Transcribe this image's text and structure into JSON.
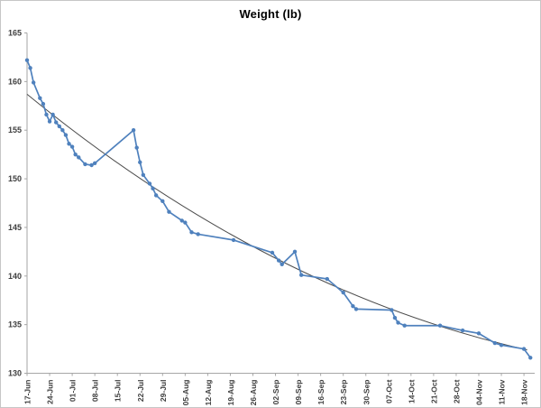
{
  "chart_data": {
    "type": "line",
    "title": "Weight (lb)",
    "ylabel": "",
    "xlabel": "",
    "ylim": [
      130,
      165
    ],
    "ytick_step": 5,
    "ytick_labels": [
      "165",
      "160",
      "155",
      "150",
      "145",
      "140",
      "135",
      "130"
    ],
    "x_tick_labels": [
      "17-Jun",
      "24-Jun",
      "01-Jul",
      "08-Jul",
      "15-Jul",
      "22-Jul",
      "29-Jul",
      "05-Aug",
      "12-Aug",
      "19-Aug",
      "26-Aug",
      "02-Sep",
      "09-Sep",
      "16-Sep",
      "23-Sep",
      "30-Sep",
      "07-Oct",
      "14-Oct",
      "21-Oct",
      "28-Oct",
      "04-Nov",
      "11-Nov",
      "18-Nov"
    ],
    "grid": false,
    "legend": "none",
    "colors": {
      "series": "#4F81BD",
      "trendline": "#4d4d4d",
      "axis": "#A6A6A6",
      "tick_label": "#3F3F3F",
      "title": "#000000"
    },
    "series": [
      {
        "marker": "circle",
        "points": [
          {
            "day": 0,
            "date": "17-Jun",
            "value": 162.2
          },
          {
            "day": 1,
            "date": "18-Jun",
            "value": 161.4
          },
          {
            "day": 2,
            "date": "19-Jun",
            "value": 159.9
          },
          {
            "day": 4,
            "date": "21-Jun",
            "value": 158.3
          },
          {
            "day": 5,
            "date": "22-Jun",
            "value": 157.7
          },
          {
            "day": 6,
            "date": "23-Jun",
            "value": 156.6
          },
          {
            "day": 7,
            "date": "24-Jun",
            "value": 155.9
          },
          {
            "day": 8,
            "date": "25-Jun",
            "value": 156.6
          },
          {
            "day": 9,
            "date": "26-Jun",
            "value": 155.8
          },
          {
            "day": 10,
            "date": "27-Jun",
            "value": 155.4
          },
          {
            "day": 11,
            "date": "28-Jun",
            "value": 155.0
          },
          {
            "day": 12,
            "date": "29-Jun",
            "value": 154.5
          },
          {
            "day": 13,
            "date": "30-Jun",
            "value": 153.6
          },
          {
            "day": 14,
            "date": "01-Jul",
            "value": 153.3
          },
          {
            "day": 15,
            "date": "02-Jul",
            "value": 152.5
          },
          {
            "day": 16,
            "date": "03-Jul",
            "value": 152.2
          },
          {
            "day": 18,
            "date": "05-Jul",
            "value": 151.5
          },
          {
            "day": 20,
            "date": "07-Jul",
            "value": 151.4
          },
          {
            "day": 21,
            "date": "08-Jul",
            "value": 151.6
          },
          {
            "day": 33,
            "date": "20-Jul",
            "value": 155.0
          },
          {
            "day": 34,
            "date": "21-Jul",
            "value": 153.2
          },
          {
            "day": 35,
            "date": "22-Jul",
            "value": 151.7
          },
          {
            "day": 36,
            "date": "23-Jul",
            "value": 150.4
          },
          {
            "day": 38,
            "date": "25-Jul",
            "value": 149.5
          },
          {
            "day": 39,
            "date": "26-Jul",
            "value": 149.0
          },
          {
            "day": 40,
            "date": "27-Jul",
            "value": 148.3
          },
          {
            "day": 42,
            "date": "29-Jul",
            "value": 147.7
          },
          {
            "day": 44,
            "date": "31-Jul",
            "value": 146.6
          },
          {
            "day": 48,
            "date": "04-Aug",
            "value": 145.7
          },
          {
            "day": 49,
            "date": "05-Aug",
            "value": 145.5
          },
          {
            "day": 51,
            "date": "07-Aug",
            "value": 144.5
          },
          {
            "day": 53,
            "date": "09-Aug",
            "value": 144.3
          },
          {
            "day": 64,
            "date": "20-Aug",
            "value": 143.7
          },
          {
            "day": 76,
            "date": "01-Sep",
            "value": 142.4
          },
          {
            "day": 78,
            "date": "03-Sep",
            "value": 141.6
          },
          {
            "day": 79,
            "date": "04-Sep",
            "value": 141.2
          },
          {
            "day": 83,
            "date": "08-Sep",
            "value": 142.5
          },
          {
            "day": 85,
            "date": "10-Sep",
            "value": 140.1
          },
          {
            "day": 93,
            "date": "18-Sep",
            "value": 139.7
          },
          {
            "day": 98,
            "date": "23-Sep",
            "value": 138.3
          },
          {
            "day": 101,
            "date": "26-Sep",
            "value": 136.9
          },
          {
            "day": 102,
            "date": "27-Sep",
            "value": 136.6
          },
          {
            "day": 113,
            "date": "08-Oct",
            "value": 136.5
          },
          {
            "day": 114,
            "date": "09-Oct",
            "value": 135.7
          },
          {
            "day": 115,
            "date": "10-Oct",
            "value": 135.2
          },
          {
            "day": 117,
            "date": "12-Oct",
            "value": 134.9
          },
          {
            "day": 128,
            "date": "23-Oct",
            "value": 134.9
          },
          {
            "day": 135,
            "date": "30-Oct",
            "value": 134.4
          },
          {
            "day": 140,
            "date": "04-Nov",
            "value": 134.1
          },
          {
            "day": 145,
            "date": "09-Nov",
            "value": 133.1
          },
          {
            "day": 147,
            "date": "11-Nov",
            "value": 132.9
          },
          {
            "day": 154,
            "date": "18-Nov",
            "value": 132.5
          },
          {
            "day": 156,
            "date": "20-Nov",
            "value": 131.6
          }
        ]
      }
    ],
    "trendline": {
      "shape": "smooth-decay",
      "anchors": [
        {
          "day": 0,
          "value": 158.7
        },
        {
          "day": 76,
          "value": 142.0
        },
        {
          "day": 155,
          "value": 132.4
        }
      ]
    }
  }
}
